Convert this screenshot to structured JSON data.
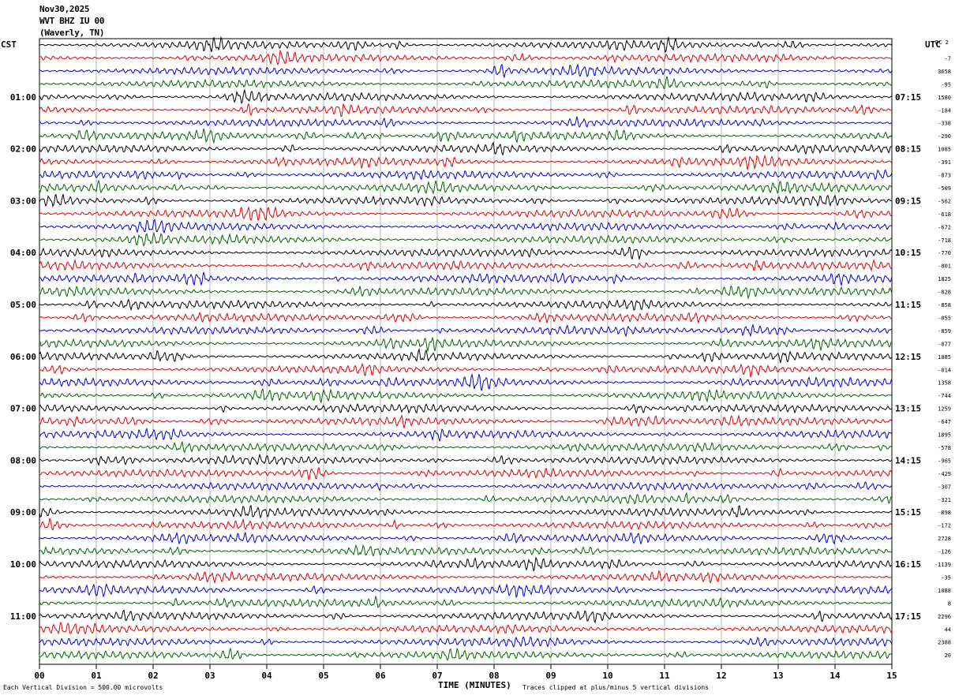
{
  "header": {
    "date": "Nov30,2025",
    "station": "WVT BHZ IU 00",
    "location": "(Waverly, TN)"
  },
  "left_tz": "CST",
  "right_tz": "UTC",
  "dc_label": "DC",
  "dc_value": "2",
  "footer": {
    "scale": "Each Vertical Division =  500.00 microvolts",
    "clip": "Traces clipped at plus/minus 5 vertical divisions"
  },
  "chart_data": {
    "type": "line",
    "title": "",
    "xlabel": "TIME (MINUTES)",
    "ylabel": "",
    "x_ticks": [
      "00",
      "01",
      "02",
      "03",
      "04",
      "05",
      "06",
      "07",
      "08",
      "09",
      "10",
      "11",
      "12",
      "13",
      "14",
      "15"
    ],
    "xlim": [
      0,
      15
    ],
    "rows": 48,
    "trace_colors": [
      "#000000",
      "#e00000",
      "#0000d0",
      "#006400"
    ],
    "left_hour_labels": [
      "01:00",
      "02:00",
      "03:00",
      "04:00",
      "05:00",
      "06:00",
      "07:00",
      "08:00",
      "09:00",
      "10:00",
      "11:00"
    ],
    "right_hour_labels": [
      "07:15",
      "08:15",
      "09:15",
      "10:15",
      "11:15",
      "12:15",
      "13:15",
      "14:15",
      "15:15",
      "16:15",
      "17:15"
    ],
    "hour_label_rows": [
      4,
      8,
      12,
      16,
      20,
      24,
      28,
      32,
      36,
      40,
      44
    ],
    "row_mean_labels": [
      "",
      "-7",
      "3658",
      "-95",
      "1580",
      "-184",
      "-338",
      "-290",
      "1085",
      "-391",
      "-873",
      "-509",
      "-562",
      "-618",
      "-672",
      "-718",
      "-770",
      "-801",
      "1825",
      "-828",
      "-858",
      "-855",
      "-859",
      "-877",
      "1885",
      "-814",
      "1358",
      "-744",
      "1259",
      "-647",
      "1895",
      "-578",
      "-965",
      "-429",
      "-307",
      "-321",
      "-898",
      "-172",
      "2728",
      "-126",
      "-1139",
      "-35",
      "1088",
      "8",
      "2296",
      "44",
      "2388",
      "20"
    ],
    "grid": true
  }
}
